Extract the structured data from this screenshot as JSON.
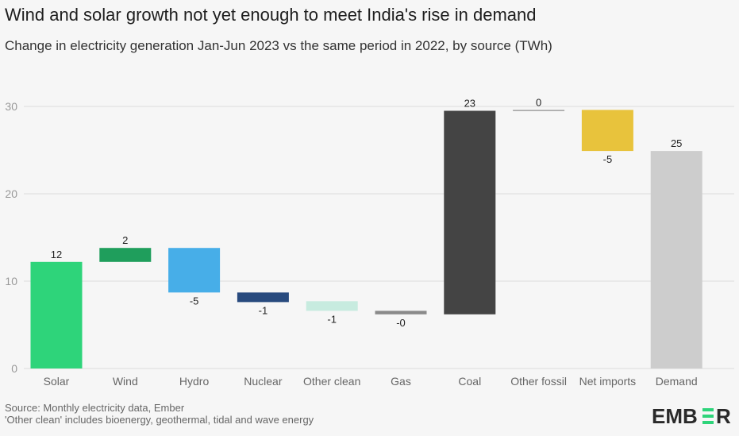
{
  "chart_data": {
    "type": "waterfall",
    "title": "Wind and solar growth not yet enough to meet India's rise in demand",
    "subtitle": "Change in electricity generation Jan-Jun 2023 vs the same period in 2022, by source (TWh)",
    "categories": [
      "Solar",
      "Wind",
      "Hydro",
      "Nuclear",
      "Other clean",
      "Gas",
      "Coal",
      "Other fossil",
      "Net imports",
      "Demand"
    ],
    "labels": [
      "12",
      "2",
      "-5",
      "-1",
      "-1",
      "-0",
      "23",
      "0",
      "-5",
      "25"
    ],
    "bars": [
      {
        "start": 0,
        "end": 12.2,
        "color": "#2ed47a"
      },
      {
        "start": 12.2,
        "end": 13.8,
        "color": "#1f9e5c"
      },
      {
        "start": 13.8,
        "end": 8.7,
        "color": "#47aee8"
      },
      {
        "start": 8.7,
        "end": 7.6,
        "color": "#284a7e"
      },
      {
        "start": 7.7,
        "end": 6.6,
        "color": "#c7ebdf"
      },
      {
        "start": 6.6,
        "end": 6.2,
        "color": "#8a8a8a"
      },
      {
        "start": 6.2,
        "end": 29.5,
        "color": "#444444"
      },
      {
        "start": 29.5,
        "end": 29.6,
        "color": "#a0a0a0"
      },
      {
        "start": 29.6,
        "end": 24.9,
        "color": "#e8c33c"
      },
      {
        "start": 0,
        "end": 24.9,
        "color": "#cdcdcd"
      }
    ],
    "ylim": [
      0,
      30
    ],
    "yticks": [
      "0",
      "10",
      "20",
      "30"
    ],
    "grid": true
  },
  "footer": {
    "source": "Source: Monthly electricity data, Ember",
    "note": "'Other clean' includes bioenergy, geothermal, tidal and wave energy"
  },
  "logo": {
    "text": "EMBER",
    "accent": "#2ed47a"
  }
}
